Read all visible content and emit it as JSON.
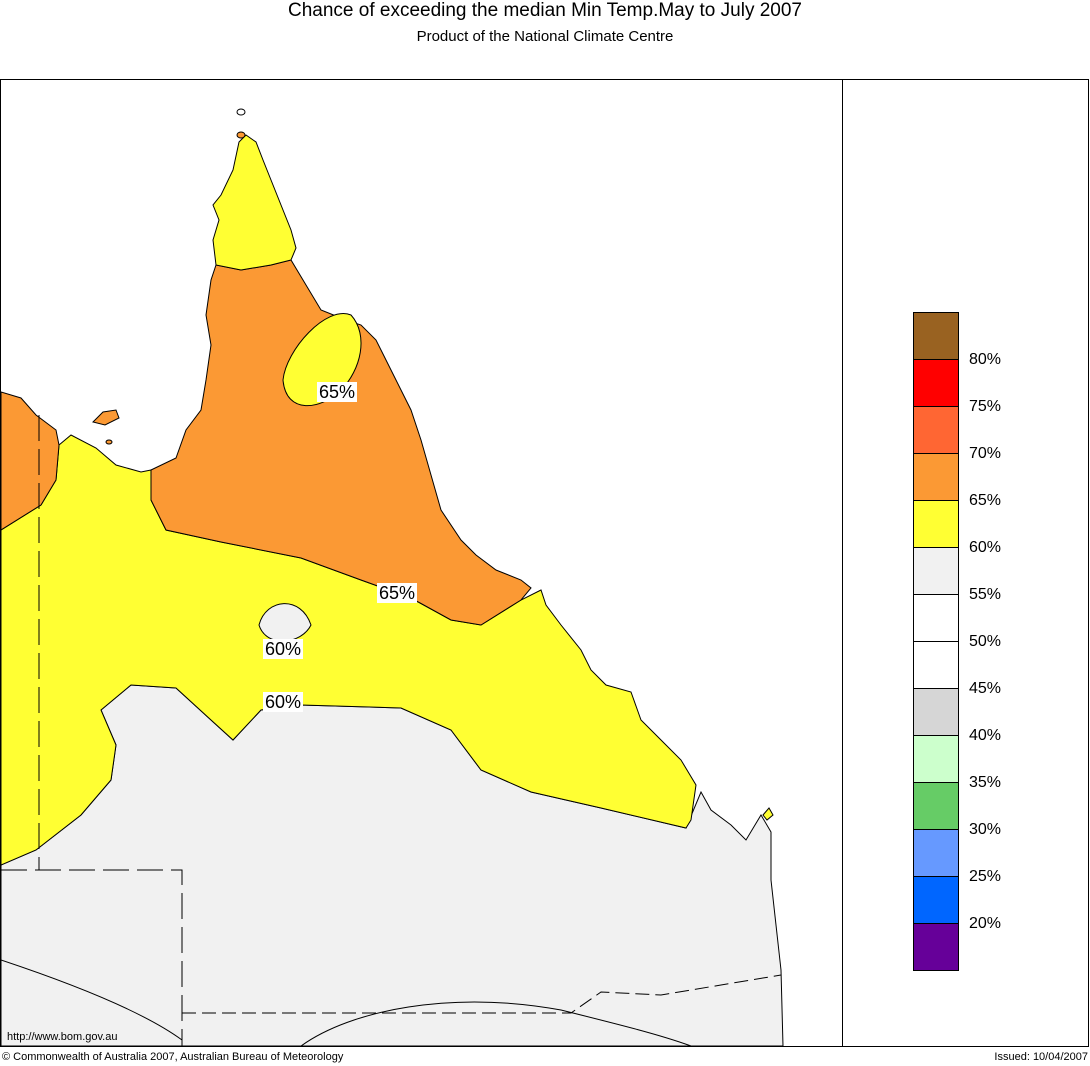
{
  "title": "Chance of exceeding the median Min Temp.May to July 2007",
  "subtitle": "Product of the National Climate Centre",
  "url": "http://www.bom.gov.au",
  "copyright": "© Commonwealth of Australia 2007, Australian Bureau of Meteorology",
  "issued": "Issued: 10/04/2007",
  "contour_labels": [
    "65%",
    "65%",
    "60%",
    "60%"
  ],
  "colors": {
    "orange_65_70": "#fb9934",
    "yellow_60_65": "#ffff33",
    "grey_55_60": "#f1f1f1"
  },
  "legend": {
    "swatches": [
      {
        "color": "#996221"
      },
      {
        "color": "#ff0000"
      },
      {
        "color": "#ff6633"
      },
      {
        "color": "#fb9934"
      },
      {
        "color": "#ffff33"
      },
      {
        "color": "#f1f1f1"
      },
      {
        "color": "#ffffff"
      },
      {
        "color": "#ffffff"
      },
      {
        "color": "#d6d6d6"
      },
      {
        "color": "#ccffcc"
      },
      {
        "color": "#66cc66"
      },
      {
        "color": "#6699ff"
      },
      {
        "color": "#0066ff"
      },
      {
        "color": "#660099"
      }
    ],
    "labels": [
      "80%",
      "75%",
      "70%",
      "65%",
      "60%",
      "55%",
      "50%",
      "45%",
      "40%",
      "35%",
      "30%",
      "25%",
      "20%"
    ]
  }
}
